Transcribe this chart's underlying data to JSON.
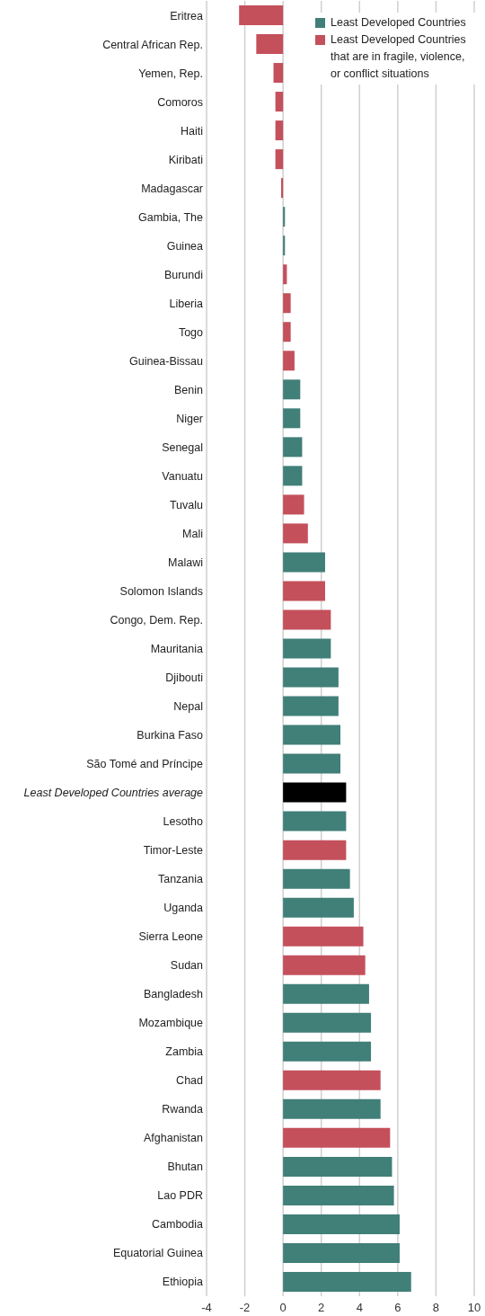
{
  "chart_data": {
    "type": "bar",
    "orientation": "horizontal",
    "categories": [
      "Eritrea",
      "Central African Rep.",
      "Yemen, Rep.",
      "Comoros",
      "Haiti",
      "Kiribati",
      "Madagascar",
      "Gambia, The",
      "Guinea",
      "Burundi",
      "Liberia",
      "Togo",
      "Guinea-Bissau",
      "Benin",
      "Niger",
      "Senegal",
      "Vanuatu",
      "Tuvalu",
      "Mali",
      "Malawi",
      "Solomon Islands",
      "Congo, Dem. Rep.",
      "Mauritania",
      "Djibouti",
      "Nepal",
      "Burkina Faso",
      "São Tomé and Príncipe",
      "Least Developed Countries average",
      "Lesotho",
      "Timor-Leste",
      "Tanzania",
      "Uganda",
      "Sierra Leone",
      "Sudan",
      "Bangladesh",
      "Mozambique",
      "Zambia",
      "Chad",
      "Rwanda",
      "Afghanistan",
      "Bhutan",
      "Lao PDR",
      "Cambodia",
      "Equatorial Guinea",
      "Ethiopia"
    ],
    "series": [
      {
        "name": "Least Developed Countries",
        "color": "#417f79",
        "values": [
          null,
          null,
          null,
          null,
          null,
          null,
          null,
          0.1,
          0.1,
          null,
          null,
          null,
          null,
          0.9,
          0.9,
          1.0,
          1.0,
          null,
          null,
          2.2,
          null,
          null,
          2.5,
          2.9,
          2.9,
          3.0,
          3.0,
          null,
          3.3,
          null,
          3.5,
          3.7,
          null,
          null,
          4.5,
          4.6,
          4.6,
          null,
          5.1,
          null,
          5.7,
          5.8,
          6.1,
          6.1,
          6.7
        ]
      },
      {
        "name": "Least Developed Countries that are in fragile, violence, or conflict situations",
        "color": "#c4505c",
        "values": [
          -2.3,
          -1.4,
          -0.5,
          -0.4,
          -0.4,
          -0.4,
          -0.1,
          null,
          null,
          0.2,
          0.4,
          0.4,
          0.6,
          null,
          null,
          null,
          null,
          1.1,
          1.3,
          null,
          2.2,
          2.5,
          null,
          null,
          null,
          null,
          null,
          null,
          null,
          3.3,
          null,
          null,
          4.2,
          4.3,
          null,
          null,
          null,
          5.1,
          null,
          5.6,
          null,
          null,
          null,
          null,
          null
        ]
      },
      {
        "color": "#000000",
        "values": [
          null,
          null,
          null,
          null,
          null,
          null,
          null,
          null,
          null,
          null,
          null,
          null,
          null,
          null,
          null,
          null,
          null,
          null,
          null,
          null,
          null,
          null,
          null,
          null,
          null,
          null,
          null,
          3.3,
          null,
          null,
          null,
          null,
          null,
          null,
          null,
          null,
          null,
          null,
          null,
          null,
          null,
          null,
          null,
          null,
          null
        ]
      }
    ],
    "xlim": [
      -4,
      10
    ],
    "xticks": [
      -4,
      -2,
      0,
      2,
      4,
      6,
      8,
      10
    ],
    "grid": "x",
    "legend": "top right"
  }
}
